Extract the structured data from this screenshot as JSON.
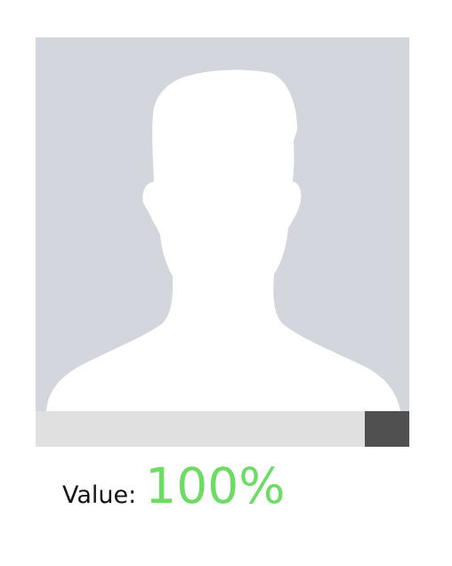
{
  "avatar": {
    "icon": "default-profile-silhouette-icon"
  },
  "slider": {
    "value_fraction": 1.0
  },
  "readout": {
    "label": "Value:",
    "value": "100%"
  },
  "colors": {
    "avatar_background": "#d3d7dd",
    "silhouette": "#ffffff",
    "track": "#e0e0e0",
    "handle": "#505050",
    "value_text": "#6ddc63"
  }
}
